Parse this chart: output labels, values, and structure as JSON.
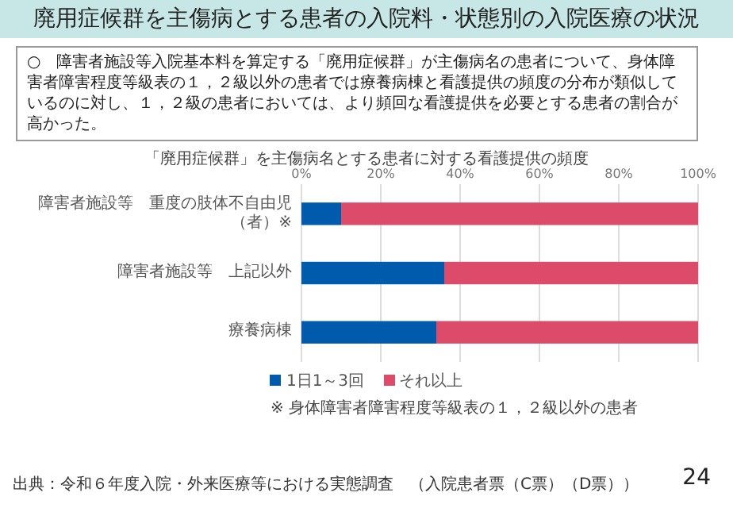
{
  "chart_data": {
    "type": "bar",
    "orientation": "horizontal",
    "stacked": true,
    "title": "廃用症候群を主傷病とする患者の入院料・状態別の入院医療の状況",
    "subtitle": "「廃用症候群」を主傷病名とする患者に対する看護提供の頻度",
    "categories": [
      "障害者施設等　重度の肢体不自由児（者）※",
      "障害者施設等　上記以外",
      "療養病棟"
    ],
    "series": [
      {
        "name": "1日1～3回",
        "color": "#005bac",
        "values": [
          10,
          36,
          34
        ]
      },
      {
        "name": "それ以上",
        "color": "#dc4b6a",
        "values": [
          90,
          64,
          66
        ]
      }
    ],
    "xlim": [
      0,
      100
    ],
    "xticks": [
      {
        "value": 0,
        "label": "0%"
      },
      {
        "value": 20,
        "label": "20%"
      },
      {
        "value": 40,
        "label": "40%"
      },
      {
        "value": 60,
        "label": "60%"
      },
      {
        "value": 80,
        "label": "80%"
      },
      {
        "value": 100,
        "label": "100%"
      }
    ],
    "grid": "x",
    "legend": "bottom",
    "annotations": [
      "○　障害者施設等入院基本料を算定する「廃用症候群」が主傷病名の患者について、身体障害者障害程度等級表の１，２級以外の患者では療養病棟と看護提供の頻度の分布が類似しているのに対し、１，２級の患者においては、より頻回な看護提供を必要とする患者の割合が高かった。",
      "※ 身体障害者障害程度等級表の１，２級以外の患者",
      "出典：令和６年度入院・外来医療等における実態調査　（入院患者票（C票）（D票））",
      "24"
    ]
  }
}
